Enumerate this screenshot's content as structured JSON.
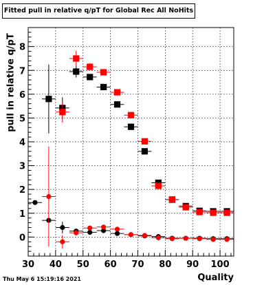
{
  "chart_data": {
    "type": "scatter",
    "title": "Fitted pull in relative q/pT for Global Rec All NoHits",
    "xlabel": "Quality",
    "ylabel": "pull in relative q/pT",
    "xlim": [
      30,
      105
    ],
    "ylim": [
      -0.8,
      8.8
    ],
    "xticks": [
      30,
      40,
      50,
      60,
      70,
      80,
      90,
      100
    ],
    "yticks": [
      0,
      1,
      2,
      3,
      4,
      5,
      6,
      7,
      8
    ],
    "grid": true,
    "legend": "none",
    "series": [
      {
        "color": "#000000",
        "points": [
          {
            "x": 37.5,
            "y": 5.8,
            "yerr": 1.45
          },
          {
            "x": 42.5,
            "y": 5.42,
            "yerr": 0.45
          },
          {
            "x": 47.5,
            "y": 6.95,
            "yerr": 0.25
          },
          {
            "x": 52.5,
            "y": 6.72,
            "yerr": 0.12
          },
          {
            "x": 57.5,
            "y": 6.3,
            "yerr": 0.06
          },
          {
            "x": 62.5,
            "y": 5.57,
            "yerr": 0.05
          },
          {
            "x": 67.5,
            "y": 4.63,
            "yerr": 0.05
          },
          {
            "x": 72.5,
            "y": 3.6,
            "yerr": 0.05
          },
          {
            "x": 77.5,
            "y": 2.28,
            "yerr": 0.05
          },
          {
            "x": 82.5,
            "y": 1.57,
            "yerr": 0.05
          },
          {
            "x": 87.5,
            "y": 1.3,
            "yerr": 0.05
          },
          {
            "x": 92.5,
            "y": 1.1,
            "yerr": 0.05
          },
          {
            "x": 97.5,
            "y": 1.08,
            "yerr": 0.05
          },
          {
            "x": 102.5,
            "y": 1.08,
            "yerr": 0.05
          }
        ]
      },
      {
        "color": "#ff0000",
        "points": [
          {
            "x": 42.5,
            "y": 5.25,
            "yerr": 0.45
          },
          {
            "x": 47.5,
            "y": 7.5,
            "yerr": 0.32
          },
          {
            "x": 52.5,
            "y": 7.15,
            "yerr": 0.15
          },
          {
            "x": 57.5,
            "y": 6.92,
            "yerr": 0.08
          },
          {
            "x": 62.5,
            "y": 6.08,
            "yerr": 0.05
          },
          {
            "x": 67.5,
            "y": 5.12,
            "yerr": 0.05
          },
          {
            "x": 72.5,
            "y": 4.02,
            "yerr": 0.05
          },
          {
            "x": 77.5,
            "y": 2.15,
            "yerr": 0.05
          },
          {
            "x": 82.5,
            "y": 1.58,
            "yerr": 0.05
          },
          {
            "x": 87.5,
            "y": 1.25,
            "yerr": 0.05
          },
          {
            "x": 92.5,
            "y": 1.05,
            "yerr": 0.05
          },
          {
            "x": 97.5,
            "y": 1.02,
            "yerr": 0.05
          },
          {
            "x": 102.5,
            "y": 1.02,
            "yerr": 0.05
          }
        ]
      },
      {
        "color": "#000000",
        "marker": "circle",
        "points": [
          {
            "x": 32.5,
            "y": 1.45,
            "yerr": 0.0
          },
          {
            "x": 37.5,
            "y": 0.7,
            "yerr": 0.0
          },
          {
            "x": 42.5,
            "y": 0.4,
            "yerr": 0.25
          },
          {
            "x": 47.5,
            "y": 0.25,
            "yerr": 0.1
          },
          {
            "x": 52.5,
            "y": 0.2,
            "yerr": 0.06
          },
          {
            "x": 57.5,
            "y": 0.27,
            "yerr": 0.05
          },
          {
            "x": 62.5,
            "y": 0.15,
            "yerr": 0.04
          },
          {
            "x": 67.5,
            "y": 0.1,
            "yerr": 0.03
          },
          {
            "x": 72.5,
            "y": 0.05,
            "yerr": 0.03
          },
          {
            "x": 77.5,
            "y": 0.02,
            "yerr": 0.03
          },
          {
            "x": 82.5,
            "y": -0.05,
            "yerr": 0.03
          },
          {
            "x": 87.5,
            "y": -0.05,
            "yerr": 0.03
          },
          {
            "x": 92.5,
            "y": -0.05,
            "yerr": 0.03
          },
          {
            "x": 97.5,
            "y": -0.07,
            "yerr": 0.03
          },
          {
            "x": 102.5,
            "y": -0.07,
            "yerr": 0.03
          }
        ]
      },
      {
        "color": "#ff0000",
        "marker": "circle",
        "points": [
          {
            "x": 37.5,
            "y": 1.7,
            "yerr": 2.1
          },
          {
            "x": 42.5,
            "y": -0.2,
            "yerr": 0.28
          },
          {
            "x": 47.5,
            "y": 0.18,
            "yerr": 0.12
          },
          {
            "x": 52.5,
            "y": 0.38,
            "yerr": 0.08
          },
          {
            "x": 57.5,
            "y": 0.42,
            "yerr": 0.05
          },
          {
            "x": 62.5,
            "y": 0.33,
            "yerr": 0.04
          },
          {
            "x": 67.5,
            "y": 0.1,
            "yerr": 0.03
          },
          {
            "x": 72.5,
            "y": 0.07,
            "yerr": 0.03
          },
          {
            "x": 77.5,
            "y": -0.03,
            "yerr": 0.03
          },
          {
            "x": 82.5,
            "y": -0.07,
            "yerr": 0.03
          },
          {
            "x": 87.5,
            "y": -0.05,
            "yerr": 0.03
          },
          {
            "x": 92.5,
            "y": -0.07,
            "yerr": 0.03
          },
          {
            "x": 97.5,
            "y": -0.1,
            "yerr": 0.03
          },
          {
            "x": 102.5,
            "y": -0.1,
            "yerr": 0.03
          }
        ]
      }
    ]
  },
  "footer": {
    "timestamp": "Thu May  6 15:19:16 2021"
  }
}
